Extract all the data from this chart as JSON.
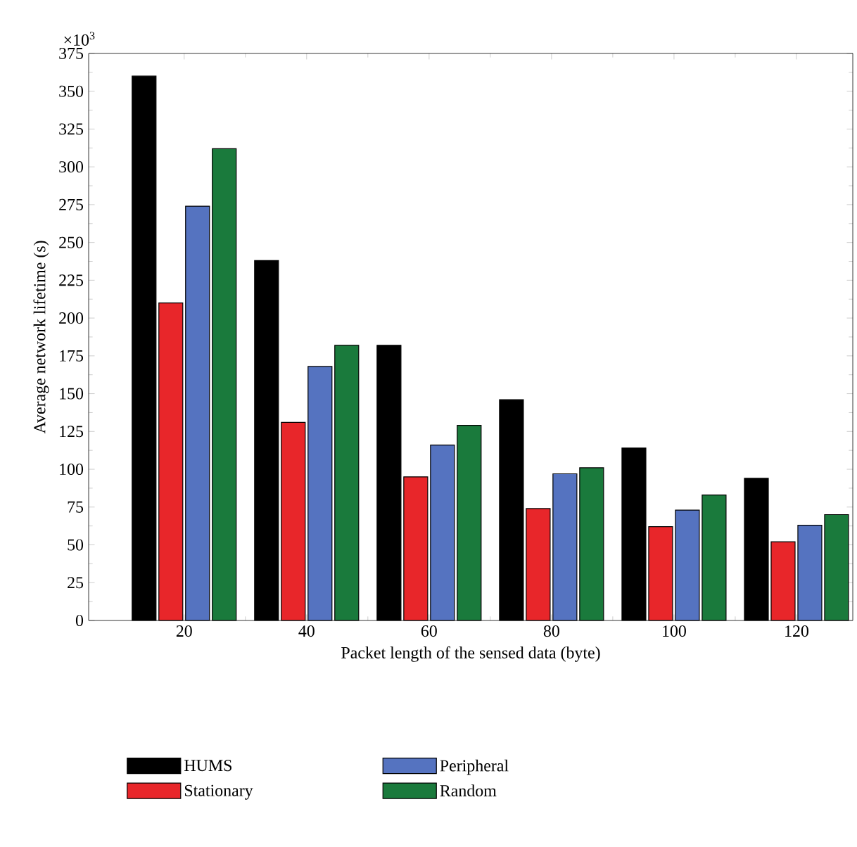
{
  "chart_data": {
    "type": "bar",
    "xlabel": "Packet length of the sensed data (byte)",
    "ylabel": "Average network lifetime (s)",
    "annotations": [
      "×10$^{3}$"
    ],
    "categories": [
      "20",
      "40",
      "60",
      "80",
      "100",
      "120"
    ],
    "series": [
      {
        "name": "HUMS",
        "color": "#000000",
        "values": [
          360,
          238,
          182,
          146,
          114,
          94
        ]
      },
      {
        "name": "Stationary",
        "color": "#e8262a",
        "values": [
          210,
          131,
          95,
          74,
          62,
          52
        ]
      },
      {
        "name": "Peripheral",
        "color": "#5573c0",
        "values": [
          274,
          168,
          116,
          97,
          73,
          63
        ]
      },
      {
        "name": "Random",
        "color": "#1a7a3c",
        "values": [
          312,
          182,
          129,
          101,
          83,
          70
        ]
      }
    ],
    "ylim": [
      0,
      375
    ],
    "yticks": [
      0,
      25,
      50,
      75,
      100,
      125,
      150,
      175,
      200,
      225,
      250,
      275,
      300,
      325,
      350,
      375
    ],
    "legend": "bottom",
    "grid": false
  }
}
